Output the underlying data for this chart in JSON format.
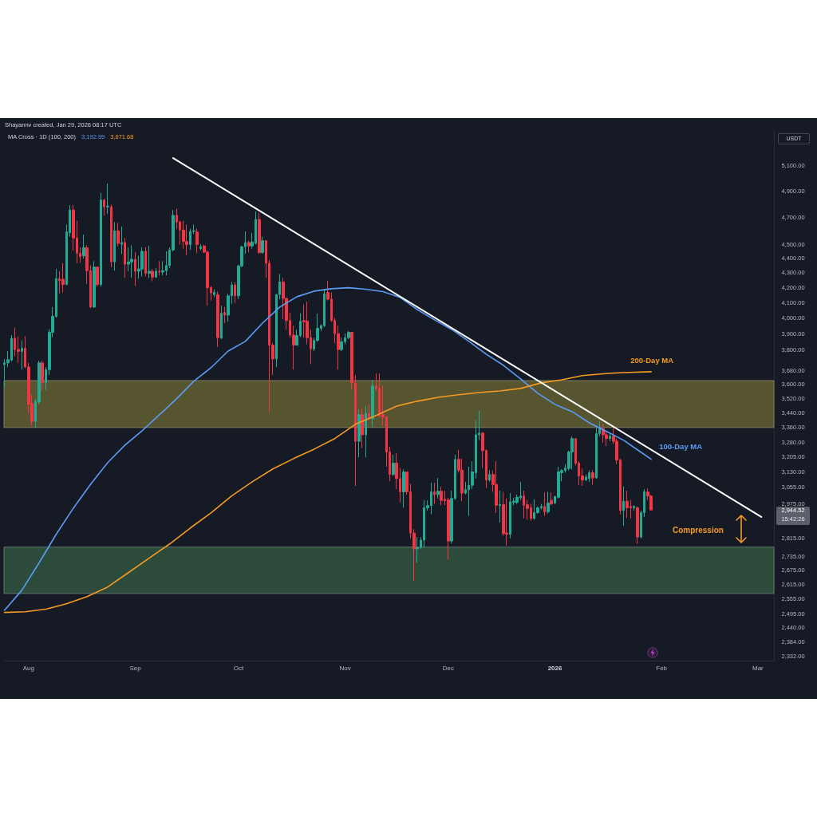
{
  "chart_data": {
    "type": "candlestick",
    "title": "Shayannv created, Jan 29, 2026 08:17 UTC",
    "subtitle": "MA Cross · 1D (100, 200)",
    "annotations": [
      "3,192.99",
      "3,671.68",
      "USDT",
      "2,944.52",
      "15:42:26",
      "Compression"
    ],
    "x": [
      "2025-07-25",
      "2025-07-26",
      "2025-07-27",
      "2025-07-28",
      "2025-07-29",
      "2025-07-30",
      "2025-07-31",
      "2025-08-01",
      "2025-08-02",
      "2025-08-03",
      "2025-08-04",
      "2025-08-05",
      "2025-08-06",
      "2025-08-07",
      "2025-08-08",
      "2025-08-09",
      "2025-08-10",
      "2025-08-11",
      "2025-08-12",
      "2025-08-13",
      "2025-08-14",
      "2025-08-15",
      "2025-08-16",
      "2025-08-17",
      "2025-08-18",
      "2025-08-19",
      "2025-08-20",
      "2025-08-21",
      "2025-08-22",
      "2025-08-23",
      "2025-08-24",
      "2025-08-25",
      "2025-08-26",
      "2025-08-27",
      "2025-08-28",
      "2025-08-29",
      "2025-08-30",
      "2025-08-31",
      "2025-09-01",
      "2025-09-02",
      "2025-09-03",
      "2025-09-04",
      "2025-09-05",
      "2025-09-06",
      "2025-09-07",
      "2025-09-08",
      "2025-09-09",
      "2025-09-10",
      "2025-09-11",
      "2025-09-12",
      "2025-09-13",
      "2025-09-14",
      "2025-09-15",
      "2025-09-16",
      "2025-09-17",
      "2025-09-18",
      "2025-09-19",
      "2025-09-20",
      "2025-09-21",
      "2025-09-22",
      "2025-09-23",
      "2025-09-24",
      "2025-09-25",
      "2025-09-26",
      "2025-09-27",
      "2025-09-28",
      "2025-09-29",
      "2025-09-30",
      "2025-10-01",
      "2025-10-02",
      "2025-10-03",
      "2025-10-04",
      "2025-10-05",
      "2025-10-06",
      "2025-10-07",
      "2025-10-08",
      "2025-10-09",
      "2025-10-10",
      "2025-10-11",
      "2025-10-12",
      "2025-10-13",
      "2025-10-14",
      "2025-10-15",
      "2025-10-16",
      "2025-10-17",
      "2025-10-18",
      "2025-10-19",
      "2025-10-20",
      "2025-10-21",
      "2025-10-22",
      "2025-10-23",
      "2025-10-24",
      "2025-10-25",
      "2025-10-26",
      "2025-10-27",
      "2025-10-28",
      "2025-10-29",
      "2025-10-30",
      "2025-10-31",
      "2025-11-01",
      "2025-11-02",
      "2025-11-03",
      "2025-11-04",
      "2025-11-05",
      "2025-11-06",
      "2025-11-07",
      "2025-11-08",
      "2025-11-09",
      "2025-11-10",
      "2025-11-11",
      "2025-11-12",
      "2025-11-13",
      "2025-11-14",
      "2025-11-15",
      "2025-11-16",
      "2025-11-17",
      "2025-11-18",
      "2025-11-19",
      "2025-11-20",
      "2025-11-21",
      "2025-11-22",
      "2025-11-23",
      "2025-11-24",
      "2025-11-25",
      "2025-11-26",
      "2025-11-27",
      "2025-11-28",
      "2025-11-29",
      "2025-11-30",
      "2025-12-01",
      "2025-12-02",
      "2025-12-03",
      "2025-12-04",
      "2025-12-05",
      "2025-12-06",
      "2025-12-07",
      "2025-12-08",
      "2025-12-09",
      "2025-12-10",
      "2025-12-11",
      "2025-12-12",
      "2025-12-13",
      "2025-12-14",
      "2025-12-15",
      "2025-12-16",
      "2025-12-17",
      "2025-12-18",
      "2025-12-19",
      "2025-12-20",
      "2025-12-21",
      "2025-12-22",
      "2025-12-23",
      "2025-12-24",
      "2025-12-25",
      "2025-12-26",
      "2025-12-27",
      "2025-12-28",
      "2025-12-29",
      "2025-12-30",
      "2025-12-31",
      "2026-01-01",
      "2026-01-02",
      "2026-01-03",
      "2026-01-04",
      "2026-01-05",
      "2026-01-06",
      "2026-01-07",
      "2026-01-08",
      "2026-01-09",
      "2026-01-10",
      "2026-01-11",
      "2026-01-12",
      "2026-01-13",
      "2026-01-14",
      "2026-01-15",
      "2026-01-16",
      "2026-01-17",
      "2026-01-18",
      "2026-01-19",
      "2026-01-20",
      "2026-01-21",
      "2026-01-22",
      "2026-01-23",
      "2026-01-24",
      "2026-01-25",
      "2026-01-26",
      "2026-01-27",
      "2026-01-28",
      "2026-01-29"
    ],
    "ohlc": [
      [
        3714,
        3746,
        3580,
        3724
      ],
      [
        3724,
        3795,
        3700,
        3743
      ],
      [
        3741,
        3893,
        3733,
        3873
      ],
      [
        3873,
        3940,
        3763,
        3804
      ],
      [
        3804,
        3885,
        3724,
        3793
      ],
      [
        3793,
        3860,
        3684,
        3811
      ],
      [
        3811,
        3885,
        3692,
        3700
      ],
      [
        3700,
        3724,
        3435,
        3486
      ],
      [
        3490,
        3539,
        3370,
        3392
      ],
      [
        3392,
        3516,
        3359,
        3502
      ],
      [
        3498,
        3737,
        3486,
        3724
      ],
      [
        3724,
        3737,
        3561,
        3610
      ],
      [
        3610,
        3700,
        3564,
        3684
      ],
      [
        3684,
        3930,
        3653,
        3910
      ],
      [
        3910,
        4071,
        3880,
        4011
      ],
      [
        4011,
        4326,
        4002,
        4260
      ],
      [
        4260,
        4311,
        4158,
        4247
      ],
      [
        4256,
        4366,
        4167,
        4220
      ],
      [
        4220,
        4644,
        4217,
        4590
      ],
      [
        4584,
        4790,
        4555,
        4753
      ],
      [
        4753,
        4790,
        4456,
        4546
      ],
      [
        4546,
        4673,
        4366,
        4437
      ],
      [
        4437,
        4479,
        4370,
        4412
      ],
      [
        4418,
        4571,
        4399,
        4475
      ],
      [
        4475,
        4494,
        4224,
        4315
      ],
      [
        4315,
        4352,
        4066,
        4071
      ],
      [
        4071,
        4381,
        4066,
        4339
      ],
      [
        4339,
        4345,
        4206,
        4220
      ],
      [
        4220,
        4886,
        4206,
        4830
      ],
      [
        4830,
        4839,
        4713,
        4777
      ],
      [
        4777,
        4958,
        4725,
        4782
      ],
      [
        4777,
        4794,
        4339,
        4376
      ],
      [
        4376,
        4663,
        4315,
        4598
      ],
      [
        4598,
        4657,
        4488,
        4507
      ],
      [
        4501,
        4629,
        4431,
        4513
      ],
      [
        4513,
        4546,
        4265,
        4360
      ],
      [
        4360,
        4479,
        4311,
        4375
      ],
      [
        4375,
        4494,
        4265,
        4394
      ],
      [
        4394,
        4444,
        4211,
        4311
      ],
      [
        4311,
        4418,
        4260,
        4326
      ],
      [
        4326,
        4479,
        4275,
        4450
      ],
      [
        4450,
        4479,
        4275,
        4296
      ],
      [
        4296,
        4488,
        4265,
        4311
      ],
      [
        4311,
        4326,
        4242,
        4271
      ],
      [
        4271,
        4333,
        4265,
        4311
      ],
      [
        4311,
        4381,
        4280,
        4305
      ],
      [
        4305,
        4381,
        4283,
        4315
      ],
      [
        4315,
        4450,
        4283,
        4350
      ],
      [
        4350,
        4479,
        4333,
        4460
      ],
      [
        4460,
        4753,
        4450,
        4713
      ],
      [
        4713,
        4763,
        4610,
        4663
      ],
      [
        4663,
        4673,
        4498,
        4604
      ],
      [
        4604,
        4673,
        4469,
        4520
      ],
      [
        4520,
        4644,
        4422,
        4498
      ],
      [
        4498,
        4613,
        4460,
        4594
      ],
      [
        4594,
        4644,
        4575,
        4598
      ],
      [
        4590,
        4613,
        4437,
        4498
      ],
      [
        4470,
        4501,
        4456,
        4483
      ],
      [
        4488,
        4498,
        4437,
        4444
      ],
      [
        4444,
        4456,
        4080,
        4199
      ],
      [
        4199,
        4211,
        4114,
        4164
      ],
      [
        4153,
        4188,
        4136,
        4167
      ],
      [
        4153,
        4174,
        3820,
        3877
      ],
      [
        3874,
        4080,
        3868,
        4031
      ],
      [
        4036,
        4071,
        3968,
        4019
      ],
      [
        4019,
        4158,
        3977,
        4145
      ],
      [
        4145,
        4238,
        4093,
        4217
      ],
      [
        4217,
        4238,
        4097,
        4145
      ],
      [
        4145,
        4356,
        4122,
        4347
      ],
      [
        4347,
        4488,
        4339,
        4483
      ],
      [
        4483,
        4594,
        4432,
        4513
      ],
      [
        4513,
        4526,
        4444,
        4488
      ],
      [
        4488,
        4584,
        4469,
        4517
      ],
      [
        4507,
        4743,
        4498,
        4683
      ],
      [
        4683,
        4733,
        4432,
        4441
      ],
      [
        4441,
        4555,
        4432,
        4526
      ],
      [
        4526,
        4526,
        4265,
        4366
      ],
      [
        4366,
        4388,
        3442,
        3831
      ],
      [
        3831,
        3844,
        3653,
        3748
      ],
      [
        3748,
        4158,
        3700,
        4153
      ],
      [
        4153,
        4292,
        4122,
        4238
      ],
      [
        4238,
        4265,
        3994,
        4128
      ],
      [
        4128,
        4131,
        3927,
        3985
      ],
      [
        3985,
        4036,
        3877,
        3893
      ],
      [
        3893,
        3952,
        3684,
        3831
      ],
      [
        3831,
        3927,
        3828,
        3890
      ],
      [
        3890,
        4031,
        3880,
        3980
      ],
      [
        3985,
        4087,
        3877,
        3977
      ],
      [
        3980,
        4106,
        3836,
        3877
      ],
      [
        3877,
        3927,
        3716,
        3808
      ],
      [
        3808,
        3877,
        3795,
        3860
      ],
      [
        3860,
        4028,
        3852,
        3935
      ],
      [
        3935,
        3960,
        3918,
        3952
      ],
      [
        3952,
        4185,
        3943,
        4158
      ],
      [
        4167,
        4247,
        4114,
        4123
      ],
      [
        4123,
        4167,
        3977,
        3985
      ],
      [
        3985,
        4002,
        3844,
        3902
      ],
      [
        3902,
        3952,
        3684,
        3804
      ],
      [
        3804,
        3877,
        3795,
        3852
      ],
      [
        3852,
        3902,
        3836,
        3877
      ],
      [
        3877,
        3918,
        3868,
        3910
      ],
      [
        3910,
        3913,
        3569,
        3607
      ],
      [
        3607,
        3653,
        3060,
        3286
      ],
      [
        3286,
        3458,
        3203,
        3428
      ],
      [
        3428,
        3465,
        3251,
        3320
      ],
      [
        3320,
        3479,
        3203,
        3435
      ],
      [
        3435,
        3486,
        3399,
        3406
      ],
      [
        3406,
        3623,
        3363,
        3589
      ],
      [
        3589,
        3661,
        3561,
        3576
      ],
      [
        3576,
        3661,
        3414,
        3421
      ],
      [
        3428,
        3592,
        3370,
        3416
      ],
      [
        3416,
        3421,
        3155,
        3230
      ],
      [
        3230,
        3258,
        3083,
        3116
      ],
      [
        3116,
        3216,
        3109,
        3173
      ],
      [
        3173,
        3223,
        3044,
        3096
      ],
      [
        3096,
        3149,
        2980,
        3031
      ],
      [
        3031,
        3142,
        2955,
        3129
      ],
      [
        3129,
        3129,
        3018,
        3031
      ],
      [
        3031,
        3070,
        2815,
        2838
      ],
      [
        2838,
        2856,
        2629,
        2767
      ],
      [
        2767,
        2820,
        2708,
        2773
      ],
      [
        2773,
        2820,
        2767,
        2806
      ],
      [
        2806,
        2992,
        2773,
        2955
      ],
      [
        2955,
        2990,
        2942,
        2965
      ],
      [
        2965,
        3076,
        2924,
        3031
      ],
      [
        3031,
        3076,
        2973,
        3018
      ],
      [
        3018,
        3099,
        2999,
        3034
      ],
      [
        3034,
        3056,
        2967,
        2990
      ],
      [
        2995,
        3037,
        2967,
        2988
      ],
      [
        2992,
        3002,
        2720,
        2802
      ],
      [
        2802,
        3037,
        2790,
        2999
      ],
      [
        2999,
        3216,
        2992,
        3192
      ],
      [
        3192,
        3241,
        3125,
        3138
      ],
      [
        3138,
        3196,
        2986,
        3025
      ],
      [
        3025,
        3080,
        3018,
        3041
      ],
      [
        3041,
        3155,
        2917,
        3063
      ],
      [
        3063,
        3183,
        3044,
        3129
      ],
      [
        3125,
        3399,
        3096,
        3320
      ],
      [
        3320,
        3450,
        3292,
        3329
      ],
      [
        3329,
        3335,
        3149,
        3237
      ],
      [
        3237,
        3244,
        3050,
        3089
      ],
      [
        3089,
        3138,
        3080,
        3116
      ],
      [
        3116,
        3136,
        3031,
        3067
      ],
      [
        3067,
        3183,
        2930,
        2967
      ],
      [
        2965,
        3037,
        2886,
        2970
      ],
      [
        2970,
        3031,
        2826,
        2835
      ],
      [
        2838,
        2999,
        2782,
        2832
      ],
      [
        2832,
        3025,
        2814,
        2983
      ],
      [
        2980,
        3002,
        2967,
        2986
      ],
      [
        2980,
        3018,
        2973,
        3005
      ],
      [
        3002,
        3080,
        2992,
        3011
      ],
      [
        3011,
        3037,
        2905,
        2967
      ],
      [
        2969,
        2992,
        2899,
        2952
      ],
      [
        2955,
        2973,
        2895,
        2905
      ],
      [
        2905,
        2995,
        2899,
        2932
      ],
      [
        2932,
        2961,
        2927,
        2955
      ],
      [
        2955,
        2973,
        2946,
        2961
      ],
      [
        2961,
        3028,
        2917,
        2936
      ],
      [
        2936,
        3031,
        2927,
        2977
      ],
      [
        2990,
        3028,
        2967,
        2973
      ],
      [
        2977,
        3012,
        2973,
        3008
      ],
      [
        3005,
        3155,
        2999,
        3129
      ],
      [
        3125,
        3142,
        3083,
        3136
      ],
      [
        3136,
        3168,
        3125,
        3149
      ],
      [
        3146,
        3237,
        3136,
        3230
      ],
      [
        3230,
        3311,
        3142,
        3300
      ],
      [
        3300,
        3300,
        3162,
        3173
      ],
      [
        3173,
        3183,
        3063,
        3109
      ],
      [
        3109,
        3146,
        3060,
        3089
      ],
      [
        3089,
        3116,
        3083,
        3103
      ],
      [
        3096,
        3136,
        3080,
        3125
      ],
      [
        3125,
        3138,
        3067,
        3099
      ],
      [
        3099,
        3359,
        3096,
        3327
      ],
      [
        3327,
        3392,
        3313,
        3353
      ],
      [
        3353,
        3377,
        3279,
        3320
      ],
      [
        3320,
        3335,
        3260,
        3300
      ],
      [
        3300,
        3327,
        3286,
        3313
      ],
      [
        3313,
        3356,
        3271,
        3286
      ],
      [
        3286,
        3300,
        3168,
        3189
      ],
      [
        3189,
        3196,
        2923,
        2942
      ],
      [
        2942,
        3057,
        2871,
        2986
      ],
      [
        2986,
        3037,
        2908,
        2955
      ],
      [
        2961,
        2992,
        2905,
        2955
      ],
      [
        2955,
        2967,
        2942,
        2961
      ],
      [
        2955,
        2961,
        2790,
        2820
      ],
      [
        2820,
        2942,
        2814,
        2932
      ],
      [
        2932,
        3044,
        2911,
        3031
      ],
      [
        3031,
        3047,
        2992,
        3011
      ],
      [
        3011,
        3015,
        2942,
        2944.52
      ]
    ],
    "colors": [
      "#22ab94",
      "#22ab94",
      "#22ab94",
      "#f23645",
      "#f23645",
      "#22ab94",
      "#f23645",
      "#f23645",
      "#f23645",
      "#22ab94",
      "#22ab94",
      "#f23645",
      "#22ab94",
      "#22ab94",
      "#22ab94",
      "#22ab94",
      "#f23645",
      "#f23645",
      "#22ab94",
      "#22ab94",
      "#f23645",
      "#f23645",
      "#f23645",
      "#22ab94",
      "#f23645",
      "#f23645",
      "#22ab94",
      "#f23645",
      "#22ab94",
      "#f23645",
      "#22ab94",
      "#f23645",
      "#22ab94",
      "#f23645",
      "#22ab94",
      "#f23645",
      "#22ab94",
      "#22ab94",
      "#f23645",
      "#22ab94",
      "#22ab94",
      "#f23645",
      "#22ab94",
      "#f23645",
      "#22ab94",
      "#f23645",
      "#22ab94",
      "#22ab94",
      "#22ab94",
      "#22ab94",
      "#f23645",
      "#f23645",
      "#f23645",
      "#f23645",
      "#22ab94",
      "#22ab94",
      "#f23645",
      "#22ab94",
      "#f23645",
      "#f23645",
      "#f23645",
      "#22ab94",
      "#f23645",
      "#22ab94",
      "#f23645",
      "#22ab94",
      "#22ab94",
      "#f23645",
      "#22ab94",
      "#22ab94",
      "#22ab94",
      "#f23645",
      "#22ab94",
      "#22ab94",
      "#f23645",
      "#22ab94",
      "#f23645",
      "#f23645",
      "#f23645",
      "#22ab94",
      "#22ab94",
      "#f23645",
      "#f23645",
      "#f23645",
      "#f23645",
      "#22ab94",
      "#22ab94",
      "#f23645",
      "#f23645",
      "#f23645",
      "#22ab94",
      "#22ab94",
      "#22ab94",
      "#22ab94",
      "#f23645",
      "#f23645",
      "#f23645",
      "#f23645",
      "#22ab94",
      "#22ab94",
      "#22ab94",
      "#f23645",
      "#f23645",
      "#22ab94",
      "#f23645",
      "#22ab94",
      "#f23645",
      "#22ab94",
      "#f23645",
      "#f23645",
      "#f23645",
      "#f23645",
      "#f23645",
      "#22ab94",
      "#f23645",
      "#f23645",
      "#22ab94",
      "#f23645",
      "#f23645",
      "#f23645",
      "#22ab94",
      "#22ab94",
      "#22ab94",
      "#22ab94",
      "#22ab94",
      "#f23645",
      "#22ab94",
      "#f23645",
      "#f23645",
      "#f23645",
      "#22ab94",
      "#22ab94",
      "#f23645",
      "#f23645",
      "#22ab94",
      "#22ab94",
      "#22ab94",
      "#22ab94",
      "#22ab94",
      "#f23645",
      "#f23645",
      "#22ab94",
      "#f23645",
      "#f23645",
      "#22ab94",
      "#f23645",
      "#f23645",
      "#22ab94",
      "#22ab94",
      "#22ab94",
      "#22ab94",
      "#f23645",
      "#f23645",
      "#f23645",
      "#22ab94",
      "#22ab94",
      "#22ab94",
      "#f23645",
      "#22ab94",
      "#f23645",
      "#22ab94",
      "#22ab94",
      "#22ab94",
      "#22ab94",
      "#22ab94",
      "#22ab94",
      "#f23645",
      "#f23645",
      "#f23645",
      "#22ab94",
      "#22ab94",
      "#f23645",
      "#22ab94",
      "#22ab94",
      "#f23645",
      "#f23645",
      "#22ab94",
      "#f23645",
      "#f23645",
      "#f23645",
      "#22ab94",
      "#f23645",
      "#f23645",
      "#22ab94",
      "#f23645",
      "#22ab94",
      "#22ab94",
      "#f23645",
      "#f23645"
    ],
    "series": [
      {
        "name": "100-Day MA",
        "type": "line",
        "color": "#5b9cf6",
        "x": [
          "2025-07-25",
          "2025-07-30",
          "2025-08-04",
          "2025-08-09",
          "2025-08-14",
          "2025-08-19",
          "2025-08-24",
          "2025-08-29",
          "2025-09-03",
          "2025-09-08",
          "2025-09-13",
          "2025-09-18",
          "2025-09-23",
          "2025-09-28",
          "2025-10-03",
          "2025-10-08",
          "2025-10-13",
          "2025-10-18",
          "2025-10-23",
          "2025-10-28",
          "2025-11-02",
          "2025-11-07",
          "2025-11-12",
          "2025-11-17",
          "2025-11-22",
          "2025-11-27",
          "2025-12-02",
          "2025-12-07",
          "2025-12-12",
          "2025-12-17",
          "2025-12-22",
          "2025-12-27",
          "2026-01-01",
          "2026-01-06",
          "2026-01-11",
          "2026-01-16",
          "2026-01-21",
          "2026-01-26",
          "2026-01-29"
        ],
        "values": [
          2509,
          2590,
          2705,
          2832,
          2953,
          3068,
          3176,
          3266,
          3342,
          3428,
          3516,
          3616,
          3695,
          3795,
          3854,
          3968,
          4071,
          4139,
          4176,
          4192,
          4199,
          4189,
          4173,
          4134,
          4055,
          3989,
          3928,
          3854,
          3776,
          3710,
          3630,
          3548,
          3485,
          3445,
          3384,
          3338,
          3291,
          3229,
          3193
        ]
      },
      {
        "name": "200-Day MA",
        "type": "line",
        "color": "#f59a23",
        "x": [
          "2025-07-25",
          "2025-07-31",
          "2025-08-06",
          "2025-08-12",
          "2025-08-18",
          "2025-08-24",
          "2025-08-30",
          "2025-09-05",
          "2025-09-11",
          "2025-09-17",
          "2025-09-23",
          "2025-09-29",
          "2025-10-05",
          "2025-10-11",
          "2025-10-17",
          "2025-10-23",
          "2025-10-29",
          "2025-11-04",
          "2025-11-10",
          "2025-11-16",
          "2025-11-22",
          "2025-11-28",
          "2025-12-04",
          "2025-12-10",
          "2025-12-16",
          "2025-12-22",
          "2025-12-28",
          "2026-01-03",
          "2026-01-09",
          "2026-01-15",
          "2026-01-21",
          "2026-01-29"
        ],
        "values": [
          2500,
          2503,
          2513,
          2535,
          2564,
          2604,
          2664,
          2726,
          2789,
          2861,
          2931,
          3011,
          3080,
          3144,
          3196,
          3245,
          3300,
          3376,
          3424,
          3476,
          3503,
          3525,
          3539,
          3552,
          3561,
          3575,
          3607,
          3625,
          3649,
          3660,
          3667,
          3672
        ]
      },
      {
        "type": "line",
        "color": "#ffffff",
        "x": [
          "2025-09-12",
          "2026-03-02"
        ],
        "values": [
          5165,
          2912
        ]
      }
    ],
    "xlim": [
      "2025-07-24T20:00",
      "2026-03-05T16:00"
    ],
    "xticks": [
      {
        "value": "2025-08-01",
        "label": "Aug"
      },
      {
        "value": "2025-09-01",
        "label": "Sep"
      },
      {
        "value": "2025-10-01",
        "label": "Oct"
      },
      {
        "value": "2025-11-01",
        "label": "Nov"
      },
      {
        "value": "2025-12-01",
        "label": "Dec"
      },
      {
        "value": "2026-01-01",
        "label": "2026"
      },
      {
        "value": "2026-02-01",
        "label": "Feb"
      },
      {
        "value": "2026-03-01",
        "label": "Mar"
      }
    ],
    "ylim": [
      2315,
      5387
    ],
    "yticks": [
      {
        "value": 5100,
        "label": "5,100.00"
      },
      {
        "value": 4900,
        "label": "4,900.00"
      },
      {
        "value": 4700,
        "label": "4,700.00"
      },
      {
        "value": 4500,
        "label": "4,500.00"
      },
      {
        "value": 4400,
        "label": "4,400.00"
      },
      {
        "value": 4300,
        "label": "4,300.00"
      },
      {
        "value": 4200,
        "label": "4,200.00"
      },
      {
        "value": 4100,
        "label": "4,100.00"
      },
      {
        "value": 4000,
        "label": "4,000.00"
      },
      {
        "value": 3900,
        "label": "3,900.00"
      },
      {
        "value": 3800,
        "label": "3,800.00"
      },
      {
        "value": 3680,
        "label": "3,680.00"
      },
      {
        "value": 3600,
        "label": "3,600.00"
      },
      {
        "value": 3520,
        "label": "3,520.00"
      },
      {
        "value": 3440,
        "label": "3,440.00"
      },
      {
        "value": 3360,
        "label": "3,360.00"
      },
      {
        "value": 3280,
        "label": "3,280.00"
      },
      {
        "value": 3205,
        "label": "3,205.00"
      },
      {
        "value": 3130,
        "label": "3,130.00"
      },
      {
        "value": 3055,
        "label": "3,055.00"
      },
      {
        "value": 2975,
        "label": "2,975.00"
      },
      {
        "value": 2815,
        "label": "2,815.00"
      },
      {
        "value": 2735,
        "label": "2,735.00"
      },
      {
        "value": 2675,
        "label": "2,675.00"
      },
      {
        "value": 2615,
        "label": "2,615.00"
      },
      {
        "value": 2555,
        "label": "2,555.00"
      },
      {
        "value": 2495,
        "label": "2,495.00"
      },
      {
        "value": 2440,
        "label": "2,440.00"
      },
      {
        "value": 2384,
        "label": "2,384.00"
      },
      {
        "value": 2332,
        "label": "2,332.00"
      }
    ],
    "log": true,
    "grid": false,
    "marker": "none",
    "bands": [
      {
        "axis": "y",
        "from": 3359,
        "to": 3620,
        "color": "#57552f"
      },
      {
        "axis": "y",
        "from": 2577,
        "to": 2775,
        "color": "#2d4b3a"
      }
    ]
  }
}
